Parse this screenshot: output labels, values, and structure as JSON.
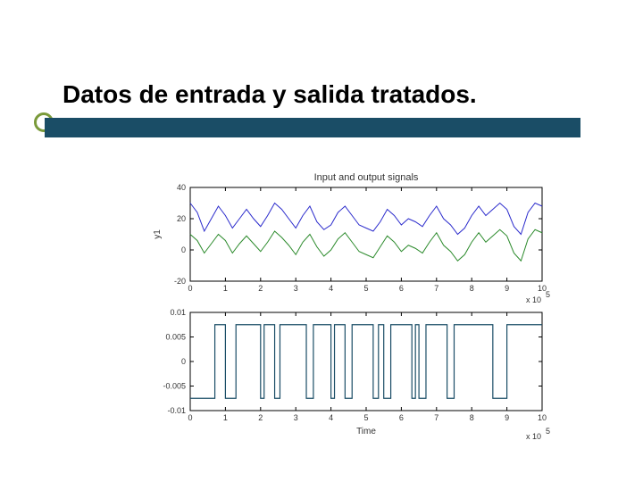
{
  "slide": {
    "title": "Datos de entrada y salida tratados."
  },
  "figure": {
    "title": "Input and output signals",
    "xlabel": "Time",
    "exponent_label": "x 10",
    "exponent_power": "5",
    "background_color": "#ffffff",
    "axis_color": "#000000",
    "grid_color": "#cccccc"
  },
  "top_chart": {
    "type": "line",
    "ylabel": "y1",
    "xlim": [
      0,
      10
    ],
    "ylim": [
      -20,
      40
    ],
    "xticks": [
      0,
      1,
      2,
      3,
      4,
      5,
      6,
      7,
      8,
      9,
      10
    ],
    "yticks": [
      -20,
      0,
      20,
      40
    ],
    "series": [
      {
        "color": "#2b2bcc",
        "line_width": 1.0,
        "x": [
          0,
          0.2,
          0.4,
          0.6,
          0.8,
          1.0,
          1.2,
          1.4,
          1.6,
          1.8,
          2.0,
          2.2,
          2.4,
          2.6,
          2.8,
          3.0,
          3.2,
          3.4,
          3.6,
          3.8,
          4.0,
          4.2,
          4.4,
          4.6,
          4.8,
          5.0,
          5.2,
          5.4,
          5.6,
          5.8,
          6.0,
          6.2,
          6.4,
          6.6,
          6.8,
          7.0,
          7.2,
          7.4,
          7.6,
          7.8,
          8.0,
          8.2,
          8.4,
          8.6,
          8.8,
          9.0,
          9.2,
          9.4,
          9.6,
          9.8,
          10.0
        ],
        "y": [
          30,
          24,
          12,
          20,
          28,
          22,
          14,
          20,
          26,
          20,
          15,
          22,
          30,
          26,
          20,
          14,
          22,
          28,
          18,
          13,
          16,
          24,
          28,
          22,
          16,
          14,
          12,
          18,
          26,
          22,
          16,
          20,
          18,
          15,
          22,
          28,
          20,
          16,
          10,
          14,
          22,
          28,
          22,
          26,
          30,
          26,
          15,
          10,
          24,
          30,
          28
        ]
      },
      {
        "color": "#2b8a2b",
        "line_width": 1.0,
        "x": [
          0,
          0.2,
          0.4,
          0.6,
          0.8,
          1.0,
          1.2,
          1.4,
          1.6,
          1.8,
          2.0,
          2.2,
          2.4,
          2.6,
          2.8,
          3.0,
          3.2,
          3.4,
          3.6,
          3.8,
          4.0,
          4.2,
          4.4,
          4.6,
          4.8,
          5.0,
          5.2,
          5.4,
          5.6,
          5.8,
          6.0,
          6.2,
          6.4,
          6.6,
          6.8,
          7.0,
          7.2,
          7.4,
          7.6,
          7.8,
          8.0,
          8.2,
          8.4,
          8.6,
          8.8,
          9.0,
          9.2,
          9.4,
          9.6,
          9.8,
          10.0
        ],
        "y": [
          10,
          6,
          -2,
          4,
          10,
          6,
          -2,
          4,
          9,
          4,
          -1,
          5,
          12,
          8,
          3,
          -3,
          5,
          10,
          2,
          -4,
          0,
          7,
          11,
          5,
          -1,
          -3,
          -5,
          2,
          9,
          5,
          -1,
          3,
          1,
          -2,
          5,
          11,
          3,
          -1,
          -7,
          -3,
          5,
          11,
          5,
          9,
          13,
          9,
          -2,
          -7,
          7,
          13,
          11
        ]
      }
    ]
  },
  "bottom_chart": {
    "type": "step",
    "ylabel": "",
    "xlim": [
      0,
      10
    ],
    "ylim": [
      -0.01,
      0.01
    ],
    "xticks": [
      0,
      1,
      2,
      3,
      4,
      5,
      6,
      7,
      8,
      9,
      10
    ],
    "yticks": [
      -0.01,
      -0.005,
      0,
      0.005,
      0.01
    ],
    "ytick_labels": [
      "-0.01",
      "-0.005",
      "0",
      "0.005",
      "0.01"
    ],
    "series": [
      {
        "color": "#1a4d66",
        "line_width": 1.2,
        "edges": [
          {
            "x": 0.0,
            "v": -0.0075
          },
          {
            "x": 0.7,
            "v": 0.0075
          },
          {
            "x": 1.0,
            "v": -0.0075
          },
          {
            "x": 1.3,
            "v": 0.0075
          },
          {
            "x": 2.0,
            "v": -0.0075
          },
          {
            "x": 2.1,
            "v": 0.0075
          },
          {
            "x": 2.4,
            "v": -0.0075
          },
          {
            "x": 2.55,
            "v": 0.0075
          },
          {
            "x": 3.3,
            "v": -0.0075
          },
          {
            "x": 3.5,
            "v": 0.0075
          },
          {
            "x": 4.0,
            "v": -0.0075
          },
          {
            "x": 4.1,
            "v": 0.0075
          },
          {
            "x": 4.4,
            "v": -0.0075
          },
          {
            "x": 4.6,
            "v": 0.0075
          },
          {
            "x": 5.2,
            "v": -0.0075
          },
          {
            "x": 5.35,
            "v": 0.0075
          },
          {
            "x": 5.5,
            "v": -0.0075
          },
          {
            "x": 5.7,
            "v": 0.0075
          },
          {
            "x": 6.3,
            "v": -0.0075
          },
          {
            "x": 6.4,
            "v": 0.0075
          },
          {
            "x": 6.5,
            "v": -0.0075
          },
          {
            "x": 6.7,
            "v": 0.0075
          },
          {
            "x": 7.3,
            "v": -0.0075
          },
          {
            "x": 7.5,
            "v": 0.0075
          },
          {
            "x": 8.6,
            "v": -0.0075
          },
          {
            "x": 9.0,
            "v": 0.0075
          },
          {
            "x": 10.0,
            "v": 0.0075
          }
        ]
      }
    ]
  }
}
